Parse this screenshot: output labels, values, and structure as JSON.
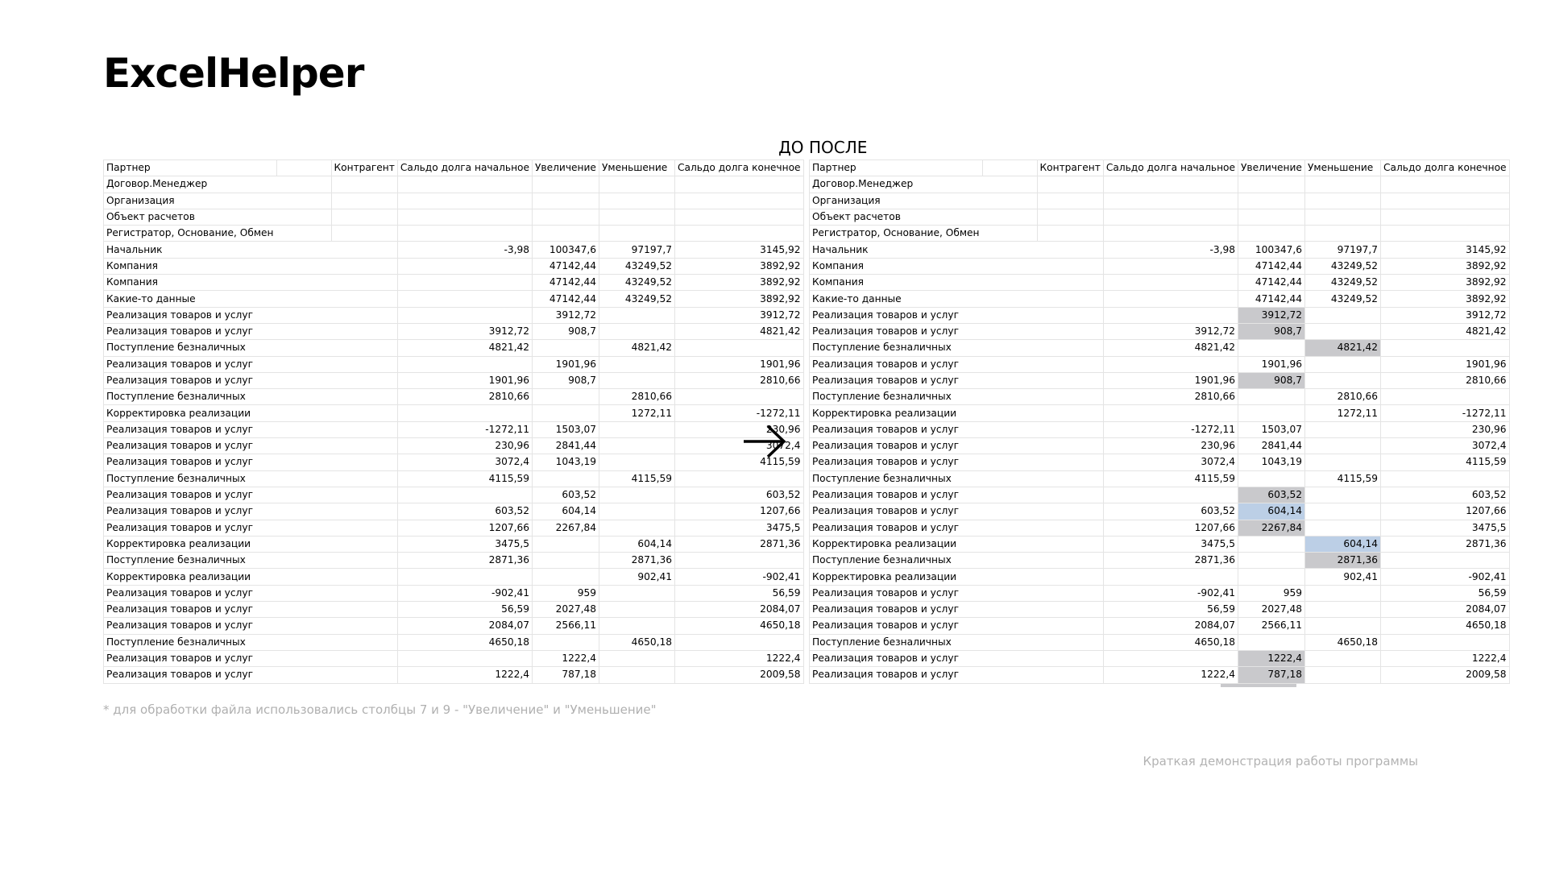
{
  "title": "ExcelHelper",
  "before_label": "ДО",
  "after_label": "ПОСЛЕ",
  "arrow_icon": "arrow-right-icon",
  "footnote": "* для обработки файла использовались столбцы 7 и 9 - \"Увеличение\" и \"Уменьшение\"",
  "caption": "Краткая демонстрация работы программы",
  "highlight_colors": {
    "gray": "#c9c9cc",
    "blue": "#bccfe6"
  },
  "headers": [
    "Партнер",
    "",
    "Контрагент",
    "Сальдо долга начальное",
    "Увеличение",
    "Уменьшение",
    "Сальдо долга конечное"
  ],
  "group_rows": [
    "Договор.Менеджер",
    "Организация",
    "Объект расчетов",
    "Регистратор, Основание, Обмен"
  ],
  "rows": [
    {
      "label": "Начальник",
      "start": "-3,98",
      "inc": "100347,6",
      "dec": "97197,7",
      "end": "3145,92"
    },
    {
      "label": "Компания",
      "start": "",
      "inc": "47142,44",
      "dec": "43249,52",
      "end": "3892,92"
    },
    {
      "label": "Компания",
      "start": "",
      "inc": "47142,44",
      "dec": "43249,52",
      "end": "3892,92"
    },
    {
      "label": "Какие-то данные",
      "start": "",
      "inc": "47142,44",
      "dec": "43249,52",
      "end": "3892,92"
    },
    {
      "label": "Реализация товаров и услуг",
      "start": "",
      "inc": "3912,72",
      "dec": "",
      "end": "3912,72"
    },
    {
      "label": "Реализация товаров и услуг",
      "start": "3912,72",
      "inc": "908,7",
      "dec": "",
      "end": "4821,42"
    },
    {
      "label": "Поступление безналичных",
      "start": "4821,42",
      "inc": "",
      "dec": "4821,42",
      "end": ""
    },
    {
      "label": "Реализация товаров и услуг",
      "start": "",
      "inc": "1901,96",
      "dec": "",
      "end": "1901,96"
    },
    {
      "label": "Реализация товаров и услуг",
      "start": "1901,96",
      "inc": "908,7",
      "dec": "",
      "end": "2810,66"
    },
    {
      "label": "Поступление безналичных",
      "start": "2810,66",
      "inc": "",
      "dec": "2810,66",
      "end": ""
    },
    {
      "label": "Корректировка реализации",
      "start": "",
      "inc": "",
      "dec": "1272,11",
      "end": "-1272,11"
    },
    {
      "label": "Реализация товаров и услуг",
      "start": "-1272,11",
      "inc": "1503,07",
      "dec": "",
      "end": "230,96"
    },
    {
      "label": "Реализация товаров и услуг",
      "start": "230,96",
      "inc": "2841,44",
      "dec": "",
      "end": "3072,4"
    },
    {
      "label": "Реализация товаров и услуг",
      "start": "3072,4",
      "inc": "1043,19",
      "dec": "",
      "end": "4115,59"
    },
    {
      "label": "Поступление безналичных",
      "start": "4115,59",
      "inc": "",
      "dec": "4115,59",
      "end": ""
    },
    {
      "label": "Реализация товаров и услуг",
      "start": "",
      "inc": "603,52",
      "dec": "",
      "end": "603,52"
    },
    {
      "label": "Реализация товаров и услуг",
      "start": "603,52",
      "inc": "604,14",
      "dec": "",
      "end": "1207,66"
    },
    {
      "label": "Реализация товаров и услуг",
      "start": "1207,66",
      "inc": "2267,84",
      "dec": "",
      "end": "3475,5"
    },
    {
      "label": "Корректировка реализации",
      "start": "3475,5",
      "inc": "",
      "dec": "604,14",
      "end": "2871,36"
    },
    {
      "label": "Поступление безналичных",
      "start": "2871,36",
      "inc": "",
      "dec": "2871,36",
      "end": ""
    },
    {
      "label": "Корректировка реализации",
      "start": "",
      "inc": "",
      "dec": "902,41",
      "end": "-902,41"
    },
    {
      "label": "Реализация товаров и услуг",
      "start": "-902,41",
      "inc": "959",
      "dec": "",
      "end": "56,59"
    },
    {
      "label": "Реализация товаров и услуг",
      "start": "56,59",
      "inc": "2027,48",
      "dec": "",
      "end": "2084,07"
    },
    {
      "label": "Реализация товаров и услуг",
      "start": "2084,07",
      "inc": "2566,11",
      "dec": "",
      "end": "4650,18"
    },
    {
      "label": "Поступление безналичных",
      "start": "4650,18",
      "inc": "",
      "dec": "4650,18",
      "end": ""
    },
    {
      "label": "Реализация товаров и услуг",
      "start": "",
      "inc": "1222,4",
      "dec": "",
      "end": "1222,4"
    },
    {
      "label": "Реализация товаров и услуг",
      "start": "1222,4",
      "inc": "787,18",
      "dec": "",
      "end": "2009,58"
    }
  ],
  "after_highlights": {
    "4": {
      "inc": "gray"
    },
    "5": {
      "inc": "gray"
    },
    "6": {
      "dec": "gray"
    },
    "8": {
      "inc": "gray"
    },
    "15": {
      "inc": "gray"
    },
    "16": {
      "inc": "blue"
    },
    "17": {
      "inc": "gray"
    },
    "18": {
      "dec": "blue"
    },
    "19": {
      "dec": "gray"
    },
    "25": {
      "inc": "gray"
    },
    "26": {
      "inc": "gray"
    }
  }
}
